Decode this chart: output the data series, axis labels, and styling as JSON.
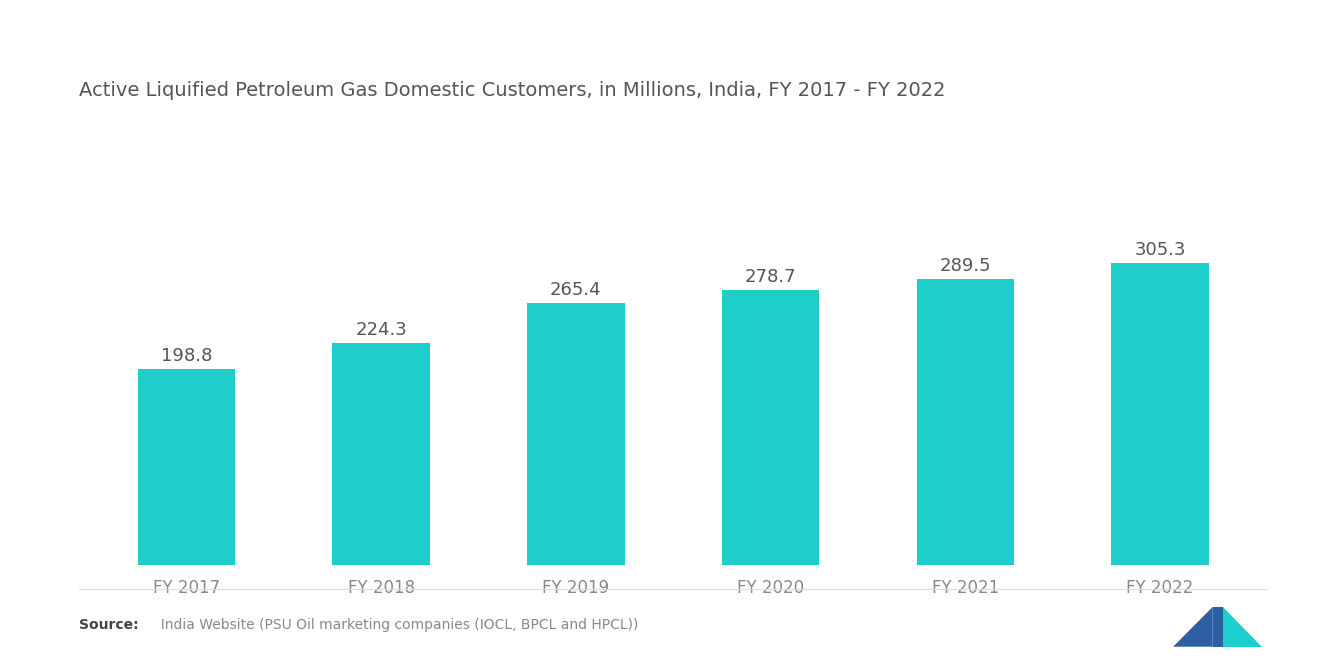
{
  "title": "Active Liquified Petroleum Gas Domestic Customers, in Millions, India, FY 2017 - FY 2022",
  "categories": [
    "FY 2017",
    "FY 2018",
    "FY 2019",
    "FY 2020",
    "FY 2021",
    "FY 2022"
  ],
  "values": [
    198.8,
    224.3,
    265.4,
    278.7,
    289.5,
    305.3
  ],
  "bar_color": "#1ECECA",
  "background_color": "#ffffff",
  "title_fontsize": 14,
  "label_fontsize": 13,
  "tick_fontsize": 12,
  "source_bold": "Source:",
  "source_rest": "  India Website (PSU Oil marketing companies (IOCL, BPCL and HPCL))",
  "ylim": [
    0,
    390
  ],
  "bar_width": 0.5,
  "title_color": "#555555",
  "label_color": "#555555",
  "tick_color": "#888888"
}
